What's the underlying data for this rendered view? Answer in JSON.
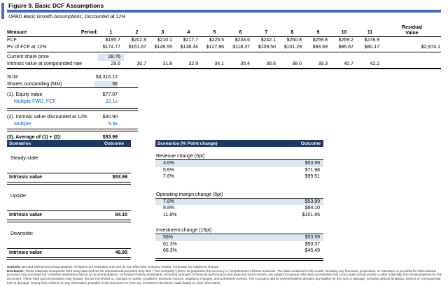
{
  "title": "Figure 9. Basic DCF Assumptions",
  "subtitle": "UPBD Basic Growth Assumptions, Discounted at 12%",
  "colors": {
    "accent_blue": "#4472C4",
    "navy_header": "#1F3864",
    "highlight_cell": "#DCE6F1",
    "blue_text": "#0563C1"
  },
  "dcf": {
    "measure_header": "Measure",
    "period_header": "Period:",
    "period_cols": [
      "1",
      "2",
      "3",
      "4",
      "5",
      "6",
      "7",
      "8",
      "9",
      "10",
      "11"
    ],
    "residual_header_1": "Residual",
    "residual_header_2": "Value",
    "rows": [
      {
        "label": "FCF",
        "values": [
          "$195.7",
          "$202.8",
          "$210.1",
          "$217.7",
          "$225.5",
          "$233.6",
          "$242.1",
          "$250.8",
          "$259.8",
          "$269.2",
          "$278.9"
        ],
        "residual": ""
      },
      {
        "label": "PV of FCF at 12%",
        "values": [
          "$174.77",
          "$161.67",
          "$149.55",
          "$138.34",
          "$127.96",
          "$118.37",
          "$109.50",
          "$101.29",
          "$93.69",
          "$86.67",
          "$80.17"
        ],
        "residual": "$2,974.1"
      },
      {
        "label": "Current share price",
        "value": "28.76"
      },
      {
        "label": "Intrinsic value at compounded rate",
        "values": [
          "29.6",
          "30.7",
          "31.8",
          "32.9",
          "34.1",
          "35.4",
          "36.6",
          "38.0",
          "39.3",
          "40.7",
          "42.2"
        ]
      }
    ]
  },
  "summary": {
    "rows": [
      {
        "label": "SUM",
        "value": "$4,316.12"
      },
      {
        "label": "Shares outstanding (MM)",
        "value": "56"
      },
      {
        "label": "(1). Equity value",
        "value": "$77.07"
      },
      {
        "label": "Multiple FWD. FCF",
        "value": "22.1x"
      },
      {
        "label": "(2). Intrinsic value discounted at 12%",
        "value": "$30.90"
      },
      {
        "label": "Multiple",
        "value": "9.9x"
      },
      {
        "label": "(3). Average of (1) + (2):",
        "value": "$53.99"
      },
      {
        "label": "Multiple",
        "value": "17.3x"
      }
    ]
  },
  "scenarios": {
    "left": {
      "col_scenarios": "Scenarios",
      "col_outcome": "Outcome",
      "items": [
        {
          "label": "Steady-state:",
          "result_label": "Intrinsic value",
          "result": "$53.99"
        },
        {
          "label": "Upside:",
          "result_label": "Intrinsic value",
          "result": "84.10"
        },
        {
          "label": "Downside:",
          "result_label": "Intrinsic value",
          "result": "46.95"
        }
      ]
    },
    "right": {
      "col_scenarios": "Scenarios (% Point change)",
      "col_outcome": "Outcome",
      "groups": [
        {
          "title": "Revenue change (6pt)",
          "rows": [
            [
              "3.6%",
              "$53.99"
            ],
            [
              "5.6%",
              "$71.98"
            ],
            [
              "7.6%",
              "$99.51"
            ]
          ]
        },
        {
          "title": "Operating margin change (6pt)",
          "rows": [
            [
              "7.8%",
              "$53.99"
            ],
            [
              "9.8%",
              "$84.10"
            ],
            [
              "11.8%",
              "$101.65"
            ]
          ]
        },
        {
          "title": "Investment change (15pt)",
          "rows": [
            [
              "56%",
              "$53.99"
            ],
            [
              "61.3%",
              "$50.37"
            ],
            [
              "66.3%",
              "$45.49"
            ]
          ]
        }
      ]
    }
  },
  "footer": {
    "sources_label": "Sources:",
    "sources_text": " Bernard Investment Group analysis. All figures are estimates only and do not reflect any company results. Forecasts are subject to change.",
    "disclaimer_label": "Disclaimer:",
    "disclaimer_text": " These materials incorporate third-party data and are for informational purposes only. BIG (\"The Company\") does not guarantee the accuracy or completeness of these materials. The data contained in this model, including any forecasts, projections, or estimates, is provided for informational purposes only and does not constitute investment advice or recommendations. All forward-looking statements, including forecasts of financial performance and expected future returns, are subject to various risks and uncertainties that could cause actual results to differ materially from those projected in this document. These risks and uncertainties may include, but are not limited to, changes in market conditions, economic factors, regulatory changes, and unforeseen events. The Company and its representatives disclaim any liability for any loss or damage, including without limitation, indirect or consequential loss or damage, arising from reliance on any information provided in this document or from any investment decisions made based on such information."
  }
}
